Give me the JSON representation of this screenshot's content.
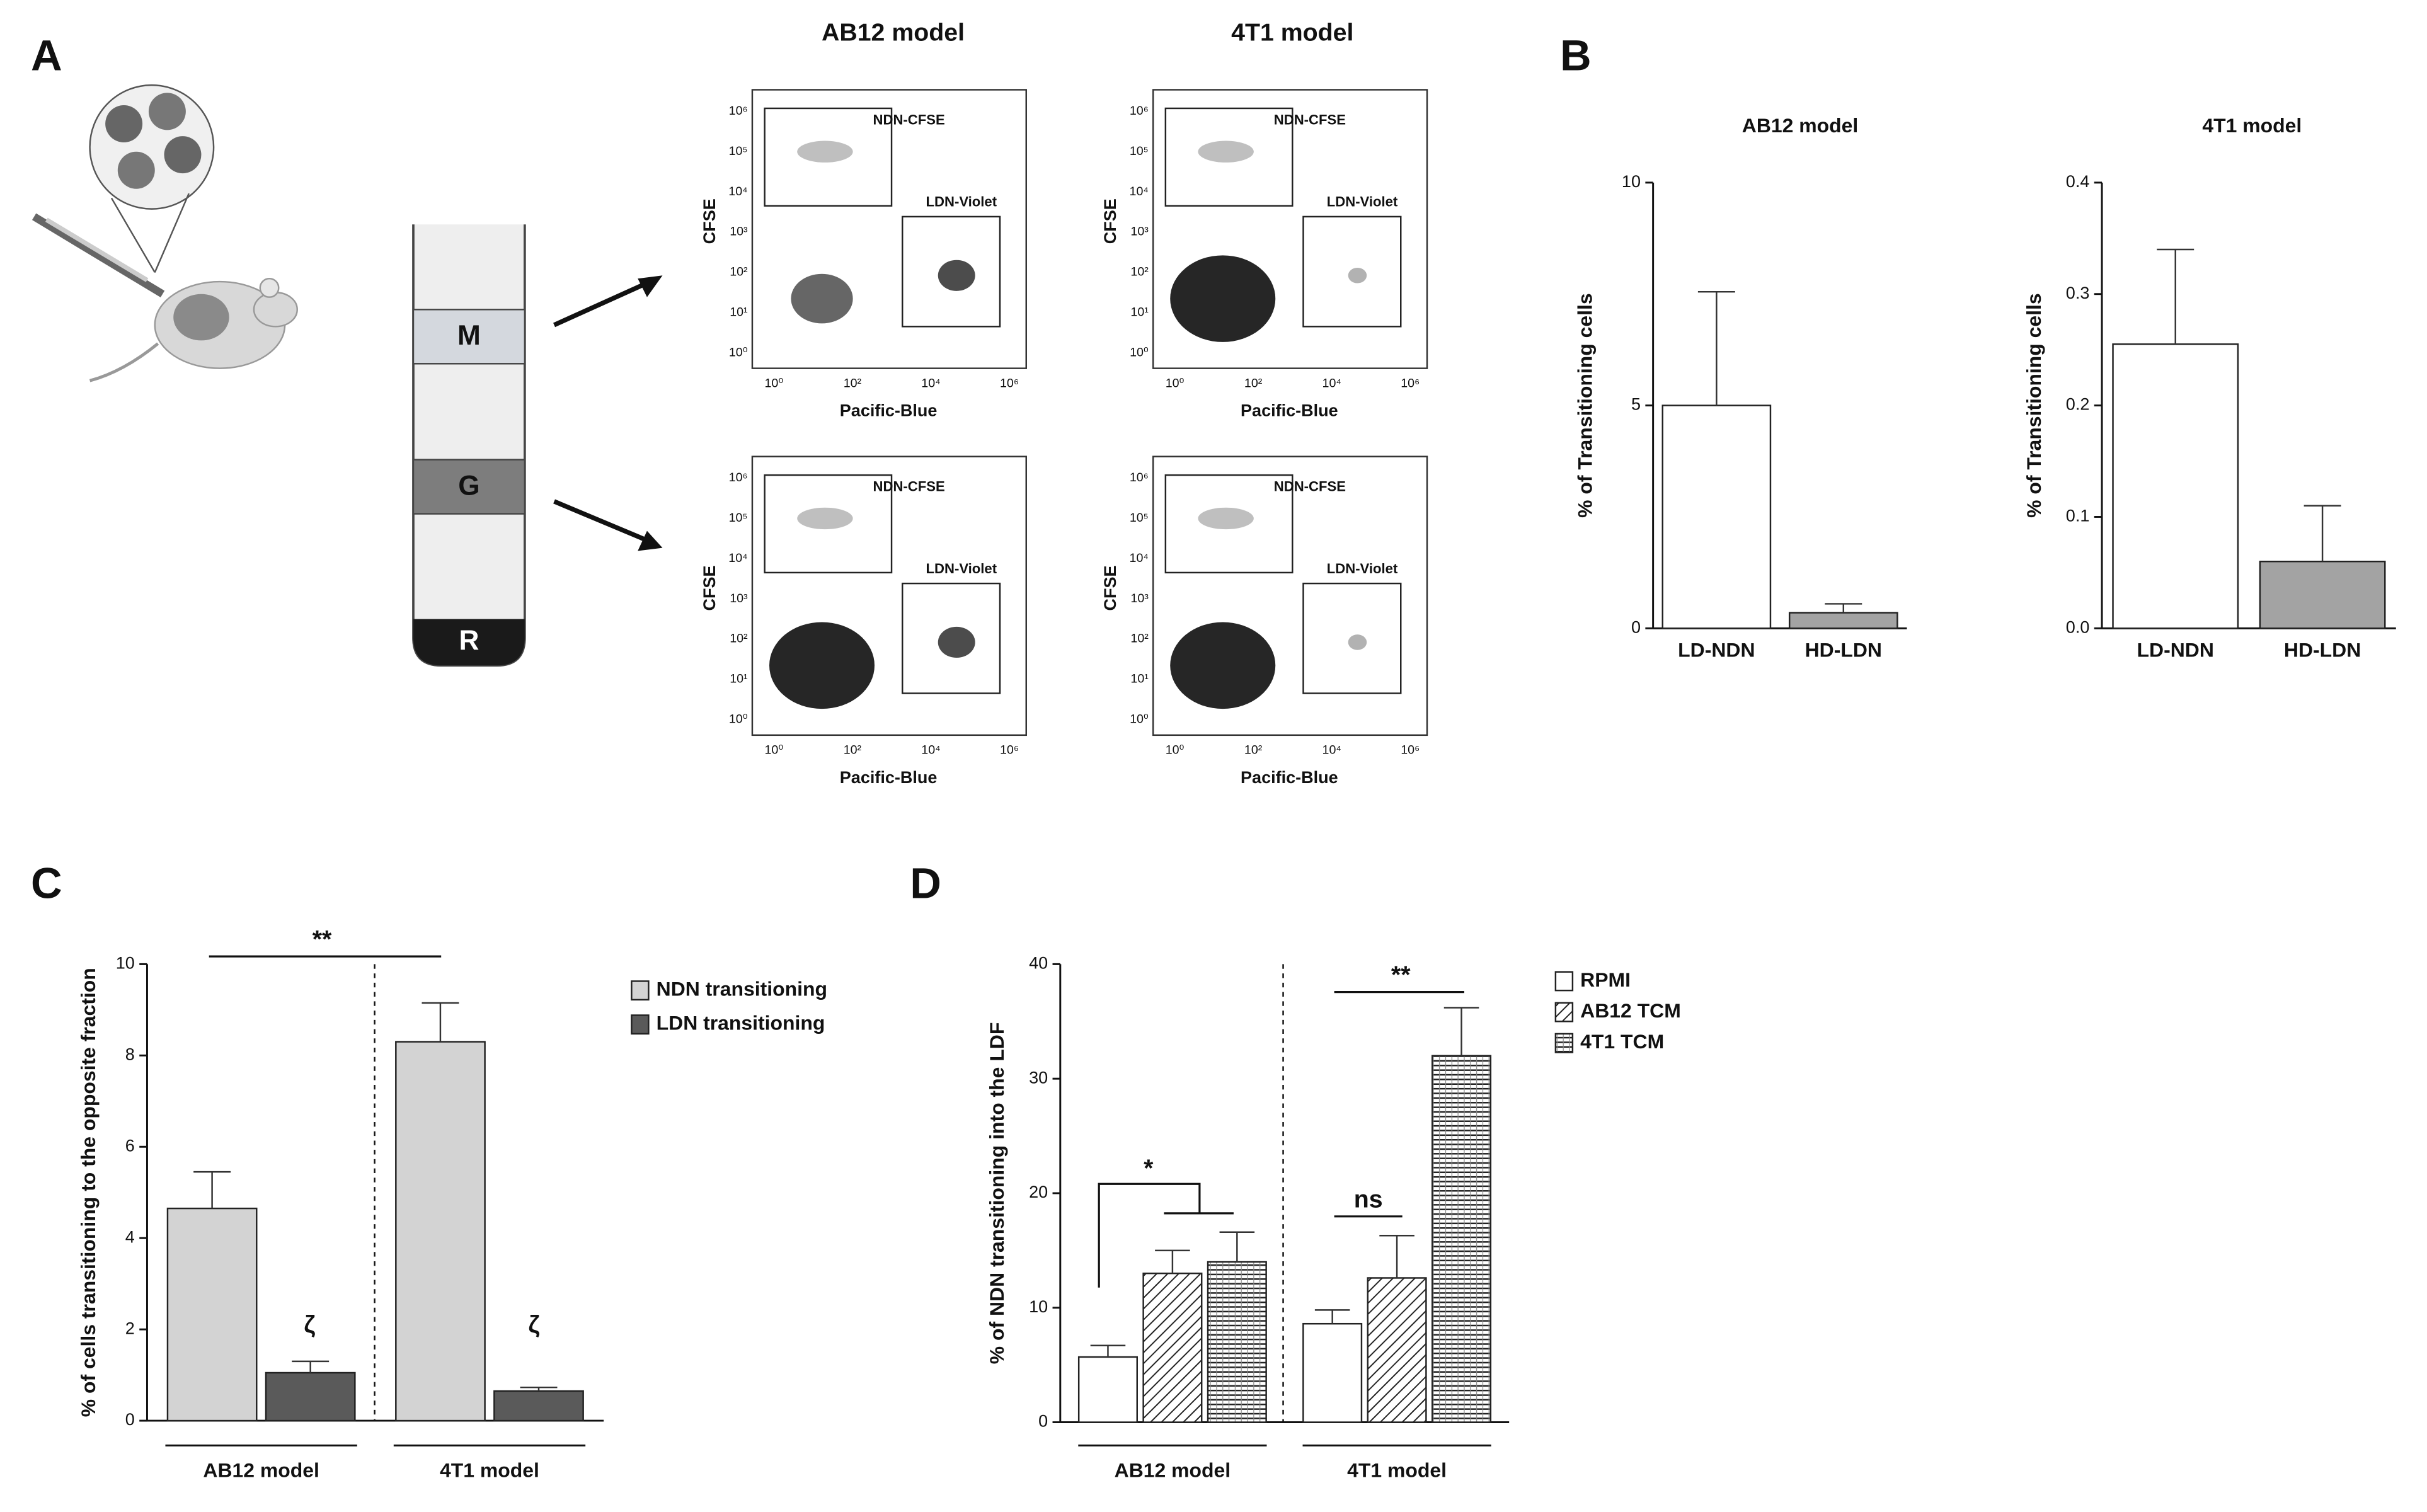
{
  "panel_labels": [
    "A",
    "B",
    "C",
    "D"
  ],
  "tube_fractions": [
    "M",
    "G",
    "R"
  ],
  "flow_plots": {
    "columns": [
      "AB12 model",
      "4T1 model"
    ],
    "x_label": "Pacific-Blue",
    "y_label": "CFSE",
    "gates": [
      "NDN-CFSE",
      "LDN-Violet"
    ],
    "xticks": [
      "10⁰",
      "10²",
      "10⁴",
      "10⁶"
    ],
    "yticks": [
      "10⁰",
      "10¹",
      "10²",
      "10³",
      "10⁴",
      "10⁵",
      "10⁶"
    ]
  },
  "chart_data": [
    {
      "type": "bar",
      "title": "AB12 model",
      "y_label": "% of Transitioning cells",
      "categories": [
        "LD-NDN",
        "HD-LDN"
      ],
      "values": [
        5.0,
        0.35
      ],
      "errors": [
        2.55,
        0.2
      ],
      "colors": [
        "#ffffff",
        "#a3a3a3"
      ],
      "ylim": [
        0,
        10
      ],
      "yticks": [
        0,
        5,
        10
      ]
    },
    {
      "type": "bar",
      "title": "4T1 model",
      "y_label": "% of Transitioning cells",
      "categories": [
        "LD-NDN",
        "HD-LDN"
      ],
      "values": [
        0.255,
        0.06
      ],
      "errors": [
        0.085,
        0.05
      ],
      "colors": [
        "#ffffff",
        "#a3a3a3"
      ],
      "ylim": [
        0,
        0.4
      ],
      "yticks": [
        {
          "value": 0,
          "label": "0.0"
        },
        0.1,
        0.2,
        0.3,
        0.4
      ]
    },
    {
      "type": "bar",
      "y_label": "% of cells transitioning to the opposite fraction",
      "categories": [
        "AB12 model",
        "4T1 model"
      ],
      "series": [
        {
          "name": "NDN transitioning",
          "color": "#d3d3d3",
          "values": [
            4.65,
            8.3
          ],
          "errors": [
            0.8,
            0.85
          ]
        },
        {
          "name": "LDN transitioning",
          "color": "#5a5a5a",
          "values": [
            1.05,
            0.65
          ],
          "errors": [
            0.25,
            0.08
          ]
        }
      ],
      "ylim": [
        0,
        10
      ],
      "yticks": [
        0,
        2,
        4,
        6,
        8,
        10
      ],
      "annotations": [
        "**",
        "ζ",
        "ζ"
      ]
    },
    {
      "type": "bar",
      "y_label": "% of NDN transitioning into the LDF",
      "categories": [
        "AB12 model",
        "4T1 model"
      ],
      "series": [
        {
          "name": "RPMI",
          "color": "#ffffff",
          "pattern": "none",
          "values": [
            5.7,
            8.6
          ],
          "errors": [
            1.0,
            1.2
          ]
        },
        {
          "name": "AB12 TCM",
          "color": "#ffffff",
          "pattern": "diagonal",
          "values": [
            13,
            12.6
          ],
          "errors": [
            2.0,
            3.7
          ]
        },
        {
          "name": "4T1 TCM",
          "color": "#ffffff",
          "pattern": "horizontal",
          "values": [
            14,
            32
          ],
          "errors": [
            2.6,
            4.2
          ]
        }
      ],
      "ylim": [
        0,
        40
      ],
      "yticks": [
        0,
        10,
        20,
        30,
        40
      ],
      "annotations": [
        "*",
        "ns",
        "**"
      ]
    }
  ]
}
